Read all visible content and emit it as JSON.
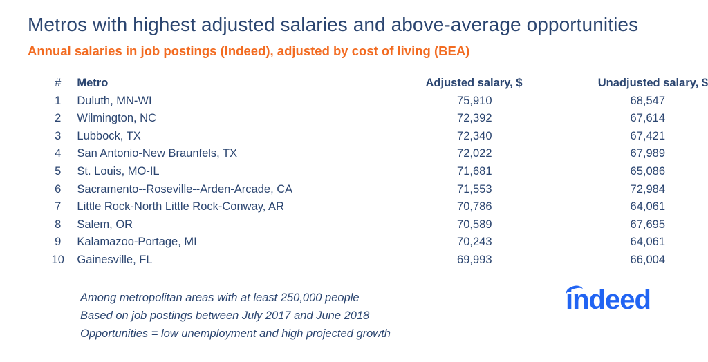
{
  "title": "Metros with highest adjusted salaries and above-average opportunities",
  "subtitle": "Annual salaries in job postings (Indeed), adjusted by cost of living (BEA)",
  "colors": {
    "title": "#2b4570",
    "subtitle": "#f26b21",
    "logo": "#2164f3"
  },
  "chart_data": {
    "type": "table",
    "columns": [
      "#",
      "Metro",
      "Adjusted salary, $",
      "Unadjusted salary, $"
    ],
    "rows": [
      [
        "1",
        "Duluth, MN-WI",
        "75,910",
        "68,547"
      ],
      [
        "2",
        "Wilmington, NC",
        "72,392",
        "67,614"
      ],
      [
        "3",
        "Lubbock, TX",
        "72,340",
        "67,421"
      ],
      [
        "4",
        "San Antonio-New Braunfels, TX",
        "72,022",
        "67,989"
      ],
      [
        "5",
        "St. Louis, MO-IL",
        "71,681",
        "65,086"
      ],
      [
        "6",
        "Sacramento--Roseville--Arden-Arcade, CA",
        "71,553",
        "72,984"
      ],
      [
        "7",
        "Little Rock-North Little Rock-Conway, AR",
        "70,786",
        "64,061"
      ],
      [
        "8",
        "Salem, OR",
        "70,589",
        "67,695"
      ],
      [
        "9",
        "Kalamazoo-Portage, MI",
        "70,243",
        "64,061"
      ],
      [
        "10",
        "Gainesville, FL",
        "69,993",
        "66,004"
      ]
    ]
  },
  "notes": [
    "Among metropolitan areas with at least 250,000 people",
    "Based on job postings between July 2017 and June 2018",
    "Opportunities = low unemployment and high projected growth"
  ],
  "logo": "indeed"
}
